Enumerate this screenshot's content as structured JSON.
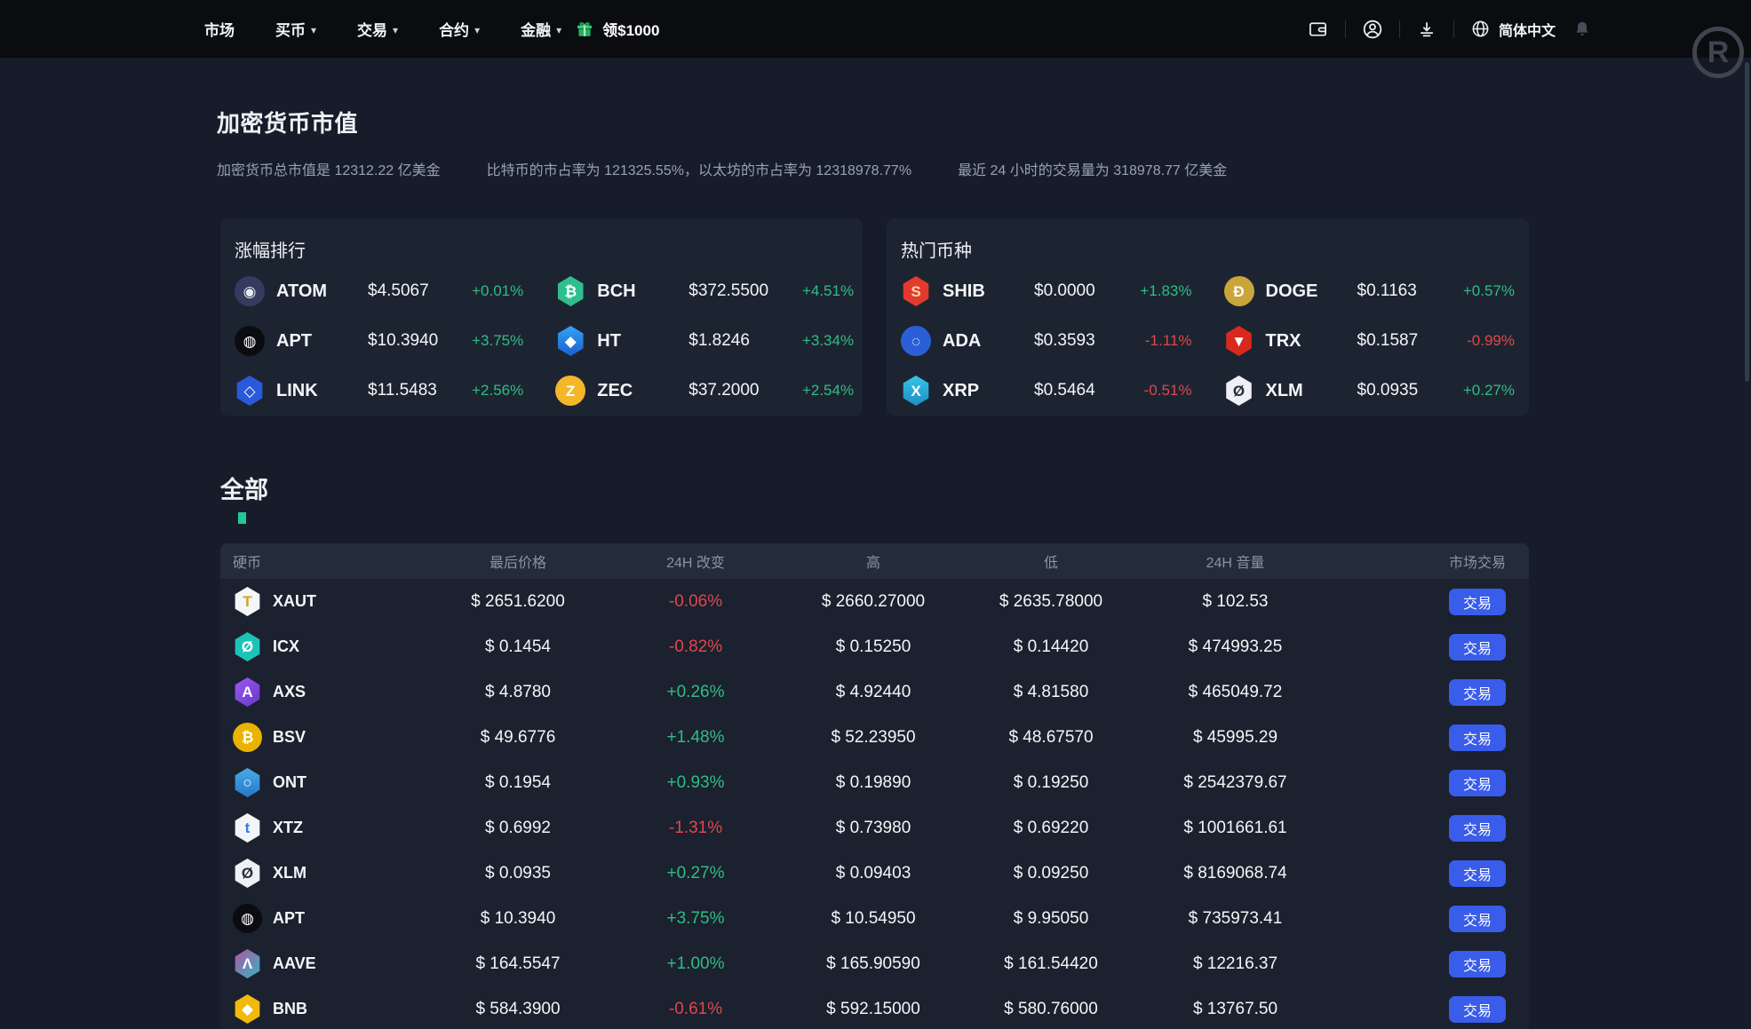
{
  "navbar": {
    "items": [
      {
        "key": "market",
        "label": "市场",
        "caret": false
      },
      {
        "key": "buy-crypto",
        "label": "买币",
        "caret": true
      },
      {
        "key": "trade",
        "label": "交易",
        "caret": true
      },
      {
        "key": "futures",
        "label": "合约",
        "caret": true
      },
      {
        "key": "finance",
        "label": "金融",
        "caret": true
      }
    ],
    "promo_label": "领$1000",
    "language": "简体中文",
    "watermark": "R"
  },
  "hero": {
    "title": "加密货币市值",
    "stats": [
      "加密货币总市值是 12312.22 亿美金",
      "比特币的市占率为 121325.55%，以太坊的市占率为 12318978.77%",
      "最近 24 小时的交易量为 318978.77 亿美金"
    ]
  },
  "cards": [
    {
      "title": "涨幅排行",
      "coins": [
        {
          "symbol": "ATOM",
          "price": "$4.5067",
          "change": "+0.01%",
          "dir": "up",
          "icon": {
            "shape": "circle",
            "bg": "#343b5e",
            "glyph": "◉",
            "color": "#e8ecf4"
          }
        },
        {
          "symbol": "BCH",
          "price": "$372.5500",
          "change": "+4.51%",
          "dir": "up",
          "icon": {
            "shape": "hex",
            "bg": "#2fbf8f",
            "glyph": "₿",
            "color": "#ffffff"
          }
        },
        {
          "symbol": "APT",
          "price": "$10.3940",
          "change": "+3.75%",
          "dir": "up",
          "icon": {
            "shape": "circle",
            "bg": "#0b0c0f",
            "glyph": "◍",
            "color": "#ffffff"
          }
        },
        {
          "symbol": "HT",
          "price": "$1.8246",
          "change": "+3.34%",
          "dir": "up",
          "icon": {
            "shape": "hex",
            "bg": "linear-gradient(180deg,#35a4f4,#1b5fd2)",
            "glyph": "◆",
            "color": "#ffffff"
          }
        },
        {
          "symbol": "LINK",
          "price": "$11.5483",
          "change": "+2.56%",
          "dir": "up",
          "icon": {
            "shape": "hex",
            "bg": "#2a5ada",
            "glyph": "◇",
            "color": "#ffffff"
          }
        },
        {
          "symbol": "ZEC",
          "price": "$37.2000",
          "change": "+2.54%",
          "dir": "up",
          "icon": {
            "shape": "circle",
            "bg": "#f4b72a",
            "glyph": "Z",
            "color": "#ffffff"
          }
        }
      ]
    },
    {
      "title": "热门币种",
      "coins": [
        {
          "symbol": "SHIB",
          "price": "$0.0000",
          "change": "+1.83%",
          "dir": "up",
          "icon": {
            "shape": "hex",
            "bg": "#e23a2d",
            "glyph": "S",
            "color": "#ffd9a6"
          }
        },
        {
          "symbol": "DOGE",
          "price": "$0.1163",
          "change": "+0.57%",
          "dir": "up",
          "icon": {
            "shape": "circle",
            "bg": "#c9a63a",
            "glyph": "Ð",
            "color": "#ffffff"
          }
        },
        {
          "symbol": "ADA",
          "price": "$0.3593",
          "change": "-1.11%",
          "dir": "down",
          "icon": {
            "shape": "circle",
            "bg": "#2a5fd8",
            "glyph": "◌",
            "color": "#ffffff"
          }
        },
        {
          "symbol": "TRX",
          "price": "$0.1587",
          "change": "-0.99%",
          "dir": "down",
          "icon": {
            "shape": "hex",
            "bg": "#d9281c",
            "glyph": "▼",
            "color": "#ffffff"
          }
        },
        {
          "symbol": "XRP",
          "price": "$0.5464",
          "change": "-0.51%",
          "dir": "down",
          "icon": {
            "shape": "hex",
            "bg": "linear-gradient(180deg,#35c6e8,#1e8fc4)",
            "glyph": "X",
            "color": "#ffffff"
          }
        },
        {
          "symbol": "XLM",
          "price": "$0.0935",
          "change": "+0.27%",
          "dir": "up",
          "icon": {
            "shape": "hex",
            "bg": "#edf0f4",
            "glyph": "Ø",
            "color": "#272d38"
          }
        }
      ]
    }
  ],
  "all_section": {
    "title": "全部",
    "columns": [
      "硬币",
      "最后价格",
      "24H 改变",
      "高",
      "低",
      "24H 音量",
      "市场交易"
    ],
    "trade_label": "交易",
    "rows": [
      {
        "symbol": "XAUT",
        "last": "$ 2651.6200",
        "change": "-0.06%",
        "dir": "down",
        "high": "$ 2660.27000",
        "low": "$ 2635.78000",
        "volume": "$ 102.53",
        "icon": {
          "shape": "hex",
          "bg": "#f4f6f8",
          "glyph": "T",
          "color": "#d5a021"
        }
      },
      {
        "symbol": "ICX",
        "last": "$ 0.1454",
        "change": "-0.82%",
        "dir": "down",
        "high": "$ 0.15250",
        "low": "$ 0.14420",
        "volume": "$ 474993.25",
        "icon": {
          "shape": "hex",
          "bg": "#1cc3b9",
          "glyph": "Ø",
          "color": "#ffffff"
        }
      },
      {
        "symbol": "AXS",
        "last": "$ 4.8780",
        "change": "+0.26%",
        "dir": "up",
        "high": "$ 4.92440",
        "low": "$ 4.81580",
        "volume": "$ 465049.72",
        "icon": {
          "shape": "hex",
          "bg": "linear-gradient(135deg,#9d5cf0,#6436c8)",
          "glyph": "A",
          "color": "#ffffff"
        }
      },
      {
        "symbol": "BSV",
        "last": "$ 49.6776",
        "change": "+1.48%",
        "dir": "up",
        "high": "$ 52.23950",
        "low": "$ 48.67570",
        "volume": "$ 45995.29",
        "icon": {
          "shape": "circle",
          "bg": "#eab300",
          "glyph": "₿",
          "color": "#ffffff"
        }
      },
      {
        "symbol": "ONT",
        "last": "$ 0.1954",
        "change": "+0.93%",
        "dir": "up",
        "high": "$ 0.19890",
        "low": "$ 0.19250",
        "volume": "$ 2542379.67",
        "icon": {
          "shape": "hex",
          "bg": "linear-gradient(180deg,#4aaae8,#2578c8)",
          "glyph": "○",
          "color": "#ffffff"
        }
      },
      {
        "symbol": "XTZ",
        "last": "$ 0.6992",
        "change": "-1.31%",
        "dir": "down",
        "high": "$ 0.73980",
        "low": "$ 0.69220",
        "volume": "$ 1001661.61",
        "icon": {
          "shape": "hex",
          "bg": "#f2f5f8",
          "glyph": "t",
          "color": "#2c7df7"
        }
      },
      {
        "symbol": "XLM",
        "last": "$ 0.0935",
        "change": "+0.27%",
        "dir": "up",
        "high": "$ 0.09403",
        "low": "$ 0.09250",
        "volume": "$ 8169068.74",
        "icon": {
          "shape": "hex",
          "bg": "#edf0f4",
          "glyph": "Ø",
          "color": "#272d38"
        }
      },
      {
        "symbol": "APT",
        "last": "$ 10.3940",
        "change": "+3.75%",
        "dir": "up",
        "high": "$ 10.54950",
        "low": "$ 9.95050",
        "volume": "$ 735973.41",
        "icon": {
          "shape": "circle",
          "bg": "#0b0c0f",
          "glyph": "◍",
          "color": "#ffffff"
        }
      },
      {
        "symbol": "AAVE",
        "last": "$ 164.5547",
        "change": "+1.00%",
        "dir": "up",
        "high": "$ 165.90590",
        "low": "$ 161.54420",
        "volume": "$ 12216.37",
        "icon": {
          "shape": "hex",
          "bg": "linear-gradient(135deg,#b6509e,#2ebac6)",
          "glyph": "Λ",
          "color": "#ffffff"
        }
      },
      {
        "symbol": "BNB",
        "last": "$ 584.3900",
        "change": "-0.61%",
        "dir": "down",
        "high": "$ 592.15000",
        "low": "$ 580.76000",
        "volume": "$ 13767.50",
        "icon": {
          "shape": "hex",
          "bg": "#f0b90b",
          "glyph": "◆",
          "color": "#ffffff"
        }
      }
    ]
  },
  "colors": {
    "accent_blue": "#3a5cea",
    "up_green": "#2ebd85",
    "down_red": "#e0464e",
    "promo_green": "#2ecc71",
    "page_bg": "#161c29",
    "panel_bg": "#1d2431",
    "navbar_bg": "#0a0c10"
  }
}
